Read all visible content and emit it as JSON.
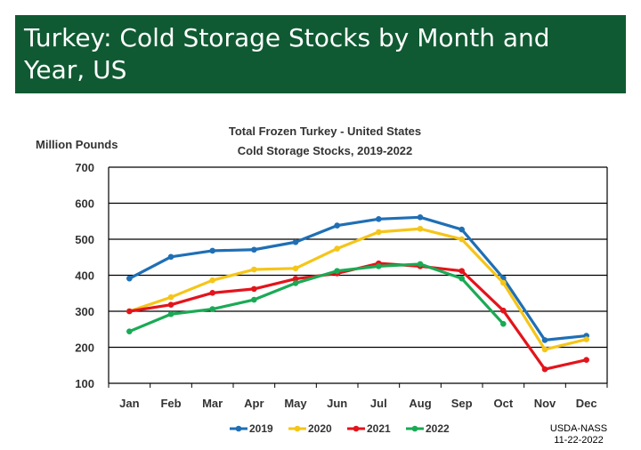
{
  "slide": {
    "title": "Turkey: Cold Storage Stocks by Month and Year, US"
  },
  "source_note": {
    "line1": "USDA-NASS",
    "line2": "11-22-2022"
  },
  "chart_data": {
    "type": "line",
    "title": "Total Frozen Turkey - United States",
    "subtitle": "Cold Storage Stocks, 2019-2022",
    "ylabel": "Million Pounds",
    "xlabel": "",
    "ylim": [
      100,
      700
    ],
    "yticks": [
      100,
      200,
      300,
      400,
      500,
      600,
      700
    ],
    "grid": true,
    "legend_position": "bottom",
    "categories": [
      "Jan",
      "Feb",
      "Mar",
      "Apr",
      "May",
      "Jun",
      "Jul",
      "Aug",
      "Sep",
      "Oct",
      "Nov",
      "Dec"
    ],
    "series": [
      {
        "name": "2019",
        "color": "#1f6fb5",
        "values": [
          391,
          451,
          468,
          471,
          492,
          538,
          556,
          561,
          527,
          392,
          220,
          232
        ]
      },
      {
        "name": "2020",
        "color": "#f5c518",
        "values": [
          300,
          339,
          386,
          416,
          419,
          474,
          520,
          529,
          500,
          379,
          194,
          222
        ]
      },
      {
        "name": "2021",
        "color": "#e3141b",
        "values": [
          300,
          318,
          351,
          362,
          390,
          405,
          433,
          425,
          412,
          302,
          139,
          165
        ]
      },
      {
        "name": "2022",
        "color": "#1aaa55",
        "values": [
          244,
          292,
          306,
          332,
          378,
          412,
          425,
          431,
          391,
          265,
          null,
          null
        ]
      }
    ]
  }
}
